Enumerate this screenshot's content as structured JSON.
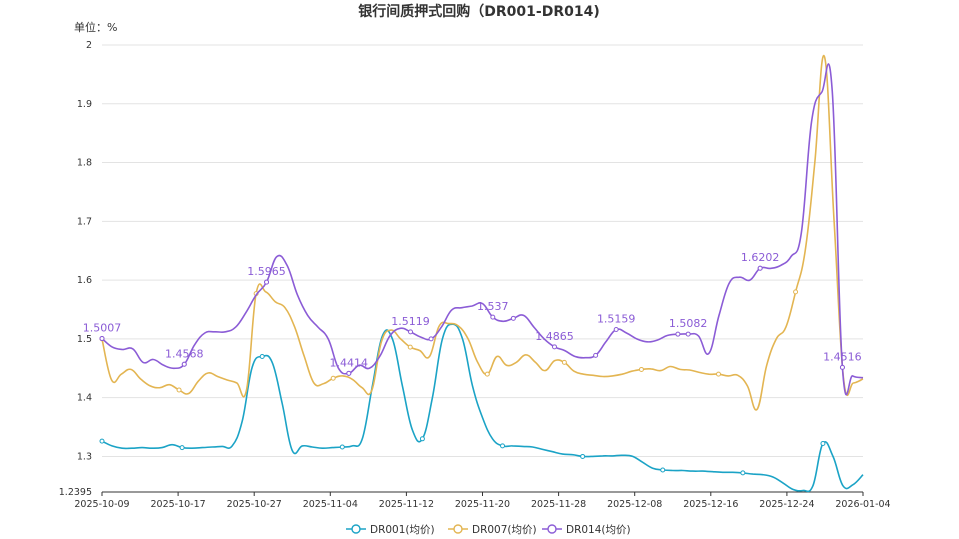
{
  "chart_data": {
    "type": "line",
    "title": "银行间质押式回购（DR001-DR014)",
    "unit_label": "单位：%",
    "xlabel": "",
    "ylabel": "",
    "ylim": [
      1.2395,
      2
    ],
    "y_ticks": [
      "2",
      "1.9",
      "1.8",
      "1.7",
      "1.6",
      "1.5",
      "1.4",
      "1.3",
      "1.2395"
    ],
    "x_ticks": [
      "2025-10-09",
      "2025-10-17",
      "2025-10-27",
      "2025-11-04",
      "2025-11-12",
      "2025-11-20",
      "2025-11-28",
      "2025-12-08",
      "2025-12-16",
      "2025-12-24",
      "2026-01-04"
    ],
    "grid": true,
    "legend_position": "bottom",
    "series": [
      {
        "name": "DR001(均价)",
        "color": "#1ba3c6",
        "values": [
          1.326,
          1.318,
          1.314,
          1.314,
          1.315,
          1.314,
          1.315,
          1.32,
          1.315,
          1.314,
          1.315,
          1.316,
          1.317,
          1.318,
          1.36,
          1.452,
          1.47,
          1.46,
          1.39,
          1.31,
          1.318,
          1.316,
          1.314,
          1.315,
          1.316,
          1.318,
          1.33,
          1.42,
          1.505,
          1.5,
          1.42,
          1.345,
          1.33,
          1.4,
          1.5,
          1.525,
          1.5,
          1.42,
          1.366,
          1.33,
          1.318,
          1.318,
          1.317,
          1.316,
          1.312,
          1.308,
          1.304,
          1.303,
          1.3,
          1.3,
          1.301,
          1.301,
          1.302,
          1.3,
          1.29,
          1.28,
          1.277,
          1.276,
          1.276,
          1.275,
          1.275,
          1.274,
          1.273,
          1.273,
          1.272,
          1.27,
          1.269,
          1.265,
          1.255,
          1.244,
          1.242,
          1.25,
          1.322,
          1.3,
          1.25,
          1.252,
          1.269
        ],
        "labels": []
      },
      {
        "name": "DR007(均价)",
        "color": "#e3b552",
        "values": [
          1.5,
          1.43,
          1.44,
          1.448,
          1.432,
          1.42,
          1.417,
          1.422,
          1.413,
          1.407,
          1.428,
          1.442,
          1.436,
          1.43,
          1.425,
          1.413,
          1.577,
          1.58,
          1.563,
          1.553,
          1.52,
          1.47,
          1.425,
          1.424,
          1.433,
          1.437,
          1.431,
          1.417,
          1.412,
          1.495,
          1.515,
          1.5,
          1.486,
          1.48,
          1.47,
          1.522,
          1.526,
          1.522,
          1.5,
          1.46,
          1.44,
          1.47,
          1.455,
          1.46,
          1.473,
          1.46,
          1.446,
          1.463,
          1.46,
          1.445,
          1.44,
          1.438,
          1.436,
          1.437,
          1.44,
          1.445,
          1.448,
          1.449,
          1.446,
          1.453,
          1.448,
          1.447,
          1.443,
          1.44,
          1.44,
          1.437,
          1.438,
          1.42,
          1.38,
          1.455,
          1.5,
          1.52,
          1.58,
          1.65,
          1.8,
          1.98,
          1.7,
          1.43,
          1.425,
          1.432
        ],
        "labels": []
      },
      {
        "name": "DR014(均价)",
        "color": "#8b5cd6",
        "values": [
          1.5007,
          1.486,
          1.482,
          1.483,
          1.46,
          1.465,
          1.455,
          1.45,
          1.4568,
          1.49,
          1.51,
          1.512,
          1.512,
          1.52,
          1.545,
          1.575,
          1.5965,
          1.64,
          1.625,
          1.575,
          1.54,
          1.52,
          1.5,
          1.45,
          1.4414,
          1.455,
          1.45,
          1.47,
          1.505,
          1.518,
          1.5119,
          1.503,
          1.5,
          1.52,
          1.549,
          1.553,
          1.556,
          1.56,
          1.537,
          1.53,
          1.535,
          1.54,
          1.52,
          1.5,
          1.4865,
          1.48,
          1.47,
          1.468,
          1.472,
          1.495,
          1.5159,
          1.51,
          1.5,
          1.495,
          1.498,
          1.506,
          1.508,
          1.5082,
          1.505,
          1.475,
          1.54,
          1.595,
          1.605,
          1.6,
          1.6202,
          1.62,
          1.625,
          1.64,
          1.68,
          1.87,
          1.92,
          1.925,
          1.4516,
          1.437,
          1.434
        ],
        "labels": [
          {
            "i": 0,
            "text": "1.5007"
          },
          {
            "i": 8,
            "text": "1.4568"
          },
          {
            "i": 16,
            "text": "1.5965"
          },
          {
            "i": 24,
            "text": "1.4414"
          },
          {
            "i": 30,
            "text": "1.5119"
          },
          {
            "i": 38,
            "text": "1.537"
          },
          {
            "i": 44,
            "text": "1.4865"
          },
          {
            "i": 50,
            "text": "1.5159"
          },
          {
            "i": 57,
            "text": "1.5082"
          },
          {
            "i": 64,
            "text": "1.6202"
          },
          {
            "i": 72,
            "text": "1.4516"
          }
        ]
      }
    ]
  }
}
